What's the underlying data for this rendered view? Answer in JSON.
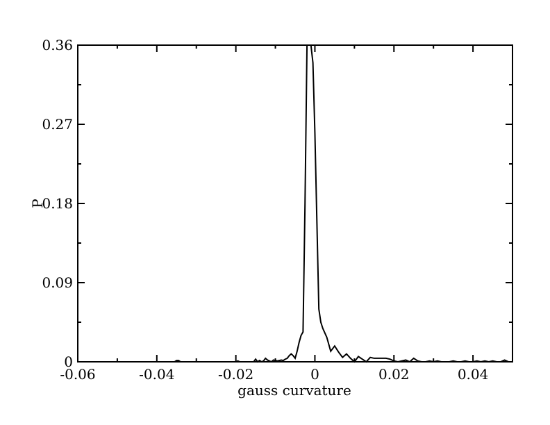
{
  "chart_data": {
    "type": "line",
    "title": "",
    "xlabel": "gauss curvature",
    "ylabel": "P",
    "xlim": [
      -0.06,
      0.05
    ],
    "ylim": [
      0,
      0.36
    ],
    "x_ticks": [
      -0.06,
      -0.04,
      -0.02,
      0,
      0.02,
      0.04
    ],
    "x_tick_labels": [
      "-0.06",
      "-0.04",
      "-0.02",
      "0",
      "0.02",
      "0.04"
    ],
    "y_ticks": [
      0,
      0.09,
      0.18,
      0.27,
      0.36
    ],
    "y_tick_labels": [
      "0",
      "0.09",
      "0.18",
      "0.27",
      "0.36"
    ],
    "grid": false,
    "legend": "none",
    "line_color": "#000000",
    "series": [
      {
        "x": [
          -0.0355,
          -0.035,
          -0.0345,
          -0.034,
          -0.02,
          -0.0195,
          -0.019,
          -0.0155,
          -0.015,
          -0.0145,
          -0.014,
          -0.0135,
          -0.013,
          -0.0125,
          -0.012,
          -0.0115,
          -0.011,
          -0.0105,
          -0.01,
          -0.0095,
          -0.009,
          -0.0085,
          -0.008,
          -0.0075,
          -0.007,
          -0.0065,
          -0.006,
          -0.0055,
          -0.005,
          -0.0045,
          -0.004,
          -0.0035,
          -0.003,
          -0.0025,
          -0.002,
          -0.0015,
          -0.001,
          -0.0005,
          0,
          0.0005,
          0.001,
          0.0015,
          0.002,
          0.003,
          0.004,
          0.005,
          0.006,
          0.007,
          0.008,
          0.009,
          0.01,
          0.011,
          0.012,
          0.013,
          0.014,
          0.015,
          0.016,
          0.017,
          0.018,
          0.019,
          0.02,
          0.021,
          0.022,
          0.023,
          0.024,
          0.025,
          0.026,
          0.027,
          0.028,
          0.029,
          0.03,
          0.031,
          0.032,
          0.033,
          0.034,
          0.035,
          0.036,
          0.037,
          0.038,
          0.039,
          0.04,
          0.041,
          0.042,
          0.043,
          0.044,
          0.045,
          0.046,
          0.047,
          0.048,
          0.049,
          0.0495
        ],
        "y": [
          0,
          0.0015,
          0.0015,
          0,
          0,
          0.001,
          0,
          0,
          0.003,
          0,
          0.0015,
          0,
          0.001,
          0.004,
          0.002,
          0.001,
          0,
          0.002,
          0.0015,
          0.001,
          0.0015,
          0.002,
          0.0015,
          0.003,
          0.004,
          0.007,
          0.009,
          0.007,
          0.004,
          0.012,
          0.022,
          0.03,
          0.034,
          0.18,
          0.36,
          0.36,
          0.36,
          0.34,
          0.26,
          0.16,
          0.06,
          0.045,
          0.038,
          0.028,
          0.012,
          0.018,
          0.011,
          0.005,
          0.009,
          0.004,
          0,
          0.006,
          0.003,
          0,
          0.005,
          0.004,
          0.004,
          0.004,
          0.004,
          0.003,
          0.001,
          0,
          0.001,
          0.002,
          0,
          0.004,
          0.001,
          0,
          0,
          0.001,
          0,
          0.001,
          0,
          0,
          0,
          0.001,
          0,
          0,
          0.001,
          0,
          0,
          0.001,
          0,
          0.001,
          0,
          0.001,
          0,
          0,
          0.002,
          0,
          0
        ]
      }
    ]
  }
}
